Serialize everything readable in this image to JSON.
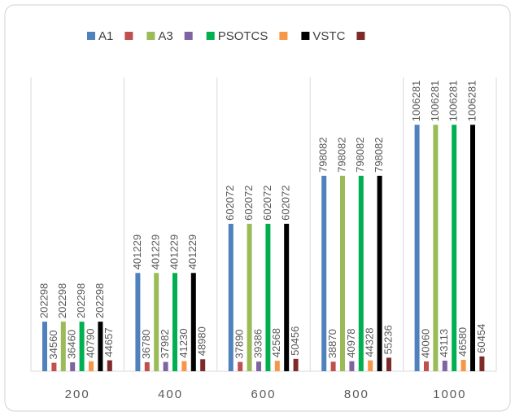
{
  "chart_data": {
    "type": "bar",
    "categories": [
      "200",
      "400",
      "600",
      "800",
      "1000"
    ],
    "series": [
      {
        "name": "A1",
        "color": "#4f81bd",
        "values": [
          202298,
          401229,
          602072,
          798082,
          1006281
        ]
      },
      {
        "name": null,
        "color": "#c0504d",
        "values": [
          34560,
          36780,
          37890,
          38870,
          40060
        ]
      },
      {
        "name": "A3",
        "color": "#9bbb59",
        "values": [
          202298,
          401229,
          602072,
          798082,
          1006281
        ]
      },
      {
        "name": null,
        "color": "#8064a2",
        "values": [
          36460,
          37982,
          39386,
          40978,
          43113
        ]
      },
      {
        "name": "PSOTCS",
        "color": "#00b050",
        "values": [
          202298,
          401229,
          602072,
          798082,
          1006281
        ]
      },
      {
        "name": null,
        "color": "#f79646",
        "values": [
          40790,
          41230,
          42568,
          44328,
          46580
        ]
      },
      {
        "name": "VSTC",
        "color": "#000000",
        "values": [
          202298,
          401229,
          602072,
          798082,
          1006281
        ]
      },
      {
        "name": null,
        "color": "#7f2a2a",
        "values": [
          44657,
          48980,
          50456,
          55236,
          60454
        ]
      }
    ],
    "ylim": [
      0,
      1200000
    ],
    "legend": "top"
  }
}
